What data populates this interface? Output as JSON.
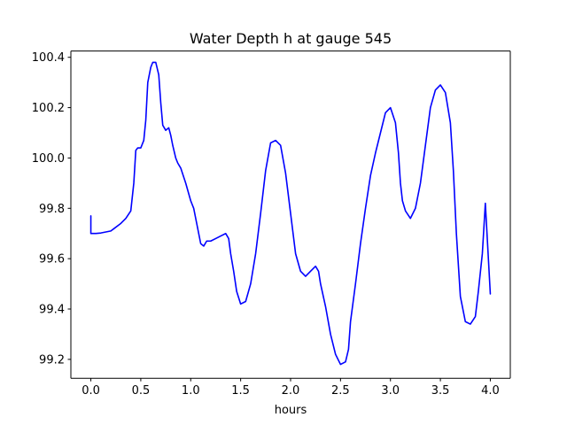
{
  "chart_data": {
    "type": "line",
    "title": "Water Depth h at gauge 545",
    "xlabel": "hours",
    "ylabel": "",
    "xlim": [
      -0.2,
      4.2
    ],
    "ylim": [
      99.125,
      100.425
    ],
    "grid": false,
    "x_ticks": [
      0.0,
      0.5,
      1.0,
      1.5,
      2.0,
      2.5,
      3.0,
      3.5,
      4.0
    ],
    "x_tick_labels": [
      "0.0",
      "0.5",
      "1.0",
      "1.5",
      "2.0",
      "2.5",
      "3.0",
      "3.5",
      "4.0"
    ],
    "y_ticks": [
      99.2,
      99.4,
      99.6,
      99.8,
      100.0,
      100.2,
      100.4
    ],
    "y_tick_labels": [
      "99.2",
      "99.4",
      "99.6",
      "99.8",
      "100.0",
      "100.2",
      "100.4"
    ],
    "series": [
      {
        "color": "#0000ff",
        "x": [
          0.0,
          0.0,
          0.05,
          0.1,
          0.2,
          0.3,
          0.35,
          0.4,
          0.43,
          0.45,
          0.47,
          0.5,
          0.53,
          0.55,
          0.57,
          0.6,
          0.62,
          0.65,
          0.68,
          0.7,
          0.72,
          0.75,
          0.78,
          0.8,
          0.82,
          0.85,
          0.87,
          0.9,
          0.95,
          1.0,
          1.03,
          1.06,
          1.1,
          1.13,
          1.16,
          1.2,
          1.25,
          1.3,
          1.35,
          1.38,
          1.4,
          1.43,
          1.46,
          1.5,
          1.55,
          1.6,
          1.65,
          1.7,
          1.75,
          1.8,
          1.85,
          1.9,
          1.95,
          2.0,
          2.05,
          2.1,
          2.15,
          2.2,
          2.25,
          2.28,
          2.3,
          2.35,
          2.4,
          2.45,
          2.5,
          2.55,
          2.58,
          2.6,
          2.65,
          2.7,
          2.75,
          2.8,
          2.85,
          2.9,
          2.95,
          3.0,
          3.05,
          3.08,
          3.1,
          3.12,
          3.15,
          3.2,
          3.25,
          3.3,
          3.35,
          3.4,
          3.45,
          3.5,
          3.55,
          3.6,
          3.63,
          3.66,
          3.7,
          3.75,
          3.8,
          3.85,
          3.88,
          3.92,
          3.95,
          4.0
        ],
        "y": [
          99.77,
          99.7,
          99.7,
          99.702,
          99.71,
          99.74,
          99.76,
          99.79,
          99.9,
          100.03,
          100.04,
          100.04,
          100.07,
          100.15,
          100.3,
          100.36,
          100.38,
          100.38,
          100.33,
          100.22,
          100.13,
          100.11,
          100.12,
          100.09,
          100.05,
          100.0,
          99.98,
          99.96,
          99.9,
          99.83,
          99.8,
          99.74,
          99.66,
          99.65,
          99.67,
          99.67,
          99.68,
          99.69,
          99.7,
          99.68,
          99.62,
          99.55,
          99.47,
          99.42,
          99.43,
          99.5,
          99.62,
          99.78,
          99.95,
          100.06,
          100.07,
          100.05,
          99.94,
          99.78,
          99.62,
          99.55,
          99.53,
          99.55,
          99.57,
          99.55,
          99.5,
          99.41,
          99.3,
          99.22,
          99.18,
          99.19,
          99.24,
          99.35,
          99.5,
          99.66,
          99.8,
          99.93,
          100.02,
          100.1,
          100.18,
          100.2,
          100.14,
          100.02,
          99.9,
          99.83,
          99.79,
          99.76,
          99.8,
          99.9,
          100.05,
          100.2,
          100.27,
          100.29,
          100.26,
          100.14,
          99.95,
          99.7,
          99.45,
          99.35,
          99.34,
          99.37,
          99.47,
          99.62,
          99.82,
          99.46
        ]
      }
    ]
  }
}
